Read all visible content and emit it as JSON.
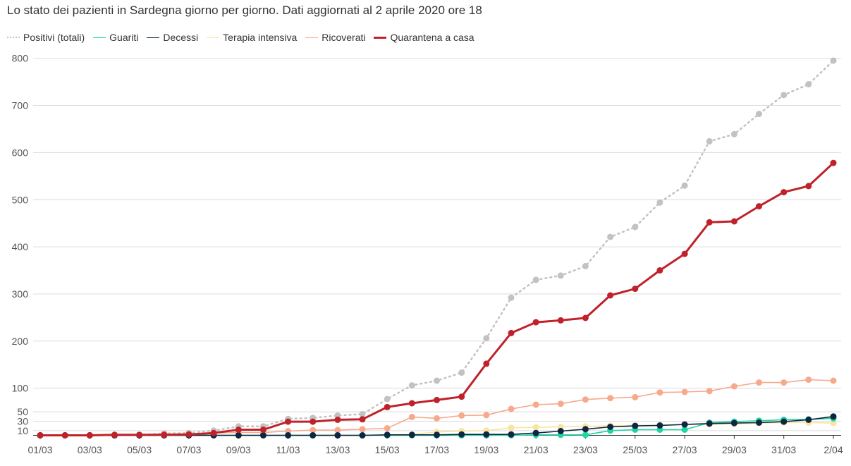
{
  "chart_data": {
    "type": "line",
    "title": "Lo stato dei pazienti in Sardegna giorno per giorno. Dati aggiornati al 2 aprile 2020 ore 18",
    "x": [
      "01/03",
      "02/03",
      "03/03",
      "04/03",
      "05/03",
      "06/03",
      "07/03",
      "08/03",
      "09/03",
      "10/03",
      "11/03",
      "12/03",
      "13/03",
      "14/03",
      "15/03",
      "16/03",
      "17/03",
      "18/03",
      "19/03",
      "20/03",
      "21/03",
      "22/03",
      "23/03",
      "24/03",
      "25/03",
      "26/03",
      "27/03",
      "28/03",
      "29/03",
      "30/03",
      "31/03",
      "01/04",
      "2/04"
    ],
    "x_tick_labels": [
      "01/03",
      "03/03",
      "05/03",
      "07/03",
      "09/03",
      "11/03",
      "13/03",
      "15/03",
      "17/03",
      "19/03",
      "21/03",
      "23/03",
      "25/03",
      "27/03",
      "29/03",
      "31/03",
      "2/04"
    ],
    "y_ticks": [
      10,
      30,
      50,
      100,
      200,
      300,
      400,
      500,
      600,
      700,
      800
    ],
    "ylim": [
      0,
      810
    ],
    "grid": true,
    "legend_position": "top-left",
    "series": [
      {
        "name": "Positivi (totali)",
        "color": "#c2c2c2",
        "style": "dotted",
        "values": [
          0,
          0,
          0,
          1,
          1,
          4,
          5,
          10,
          19,
          19,
          35,
          37,
          42,
          45,
          77,
          106,
          116,
          133,
          206,
          292,
          330,
          339,
          359,
          421,
          442,
          494,
          530,
          624,
          639,
          682,
          722,
          745,
          795
        ]
      },
      {
        "name": "Guariti",
        "color": "#1fd6a3",
        "style": "solid",
        "values": [
          0,
          0,
          0,
          0,
          0,
          0,
          0,
          0,
          0,
          0,
          0,
          0,
          0,
          0,
          0,
          0,
          0,
          0,
          0,
          0,
          1,
          1,
          1,
          10,
          12,
          12,
          12,
          27,
          29,
          31,
          33,
          34,
          36
        ]
      },
      {
        "name": "Decessi",
        "color": "#0d2742",
        "style": "solid",
        "values": [
          0,
          0,
          0,
          0,
          0,
          0,
          0,
          0,
          0,
          0,
          0,
          0,
          0,
          0,
          1,
          1,
          1,
          2,
          2,
          2,
          5,
          9,
          13,
          18,
          20,
          21,
          23,
          25,
          26,
          27,
          29,
          33,
          40
        ]
      },
      {
        "name": "Terapia intensiva",
        "color": "#fae3a3",
        "style": "solid",
        "values": [
          0,
          0,
          0,
          0,
          0,
          0,
          0,
          0,
          0,
          0,
          0,
          0,
          0,
          0,
          1,
          2,
          7,
          9,
          10,
          16,
          17,
          18,
          19,
          20,
          21,
          22,
          23,
          23,
          24,
          26,
          27,
          27,
          26
        ]
      },
      {
        "name": "Ricoverati",
        "color": "#f7a98c",
        "style": "solid",
        "values": [
          0,
          0,
          0,
          0,
          0,
          3,
          3,
          5,
          6,
          6,
          9,
          11,
          11,
          13,
          15,
          39,
          36,
          42,
          43,
          56,
          65,
          67,
          76,
          79,
          81,
          91,
          92,
          94,
          104,
          112,
          112,
          118,
          116
        ]
      },
      {
        "name": "Quarantena a casa",
        "color": "#c0222a",
        "style": "solid",
        "values": [
          0,
          0,
          0,
          1,
          1,
          1,
          2,
          5,
          12,
          12,
          29,
          29,
          33,
          34,
          60,
          68,
          75,
          82,
          152,
          217,
          240,
          244,
          249,
          297,
          311,
          350,
          385,
          452,
          454,
          486,
          516,
          529,
          578
        ]
      }
    ]
  }
}
